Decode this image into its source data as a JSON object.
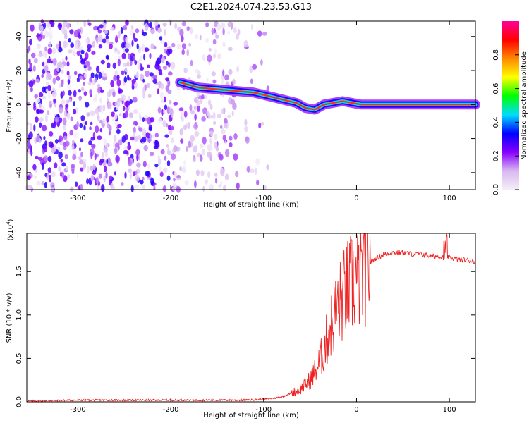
{
  "title": "C2E1.2024.074.23.53.G13",
  "chart_data": [
    {
      "type": "heatmap",
      "xlabel": "Height of straight line (km)",
      "ylabel": "Frequency (Hz)",
      "xlim": [
        -355,
        128
      ],
      "ylim": [
        -50,
        49
      ],
      "xticks": [
        "-300",
        "-200",
        "-100",
        "0",
        "100"
      ],
      "xtick_values": [
        -300,
        -200,
        -100,
        0,
        100
      ],
      "yticks": [
        "-40",
        "-20",
        "0",
        "20",
        "40"
      ],
      "ytick_values": [
        -40,
        -20,
        0,
        20,
        40
      ],
      "colorbar": {
        "label": "Normalized spectral amplitude",
        "range": [
          0,
          1
        ],
        "ticks": [
          "0.0",
          "0.2",
          "0.4",
          "0.6",
          "0.8"
        ],
        "tick_values": [
          0,
          0.2,
          0.4,
          0.6,
          0.8
        ],
        "colors": [
          "#f4eef9",
          "#d8b8f0",
          "#8800ff",
          "#0000ff",
          "#00ddff",
          "#00ff00",
          "#ffff00",
          "#ff8800",
          "#ff0000",
          "#ff0099"
        ]
      },
      "ridge": {
        "x": [
          -190,
          -170,
          -150,
          -130,
          -110,
          -95,
          -80,
          -65,
          -55,
          -45,
          -35,
          -25,
          -15,
          -5,
          5,
          128
        ],
        "y": [
          13,
          10,
          9,
          8,
          7,
          5,
          3,
          1,
          -2,
          -3,
          0,
          1,
          2,
          1,
          0,
          0
        ]
      }
    },
    {
      "type": "line",
      "xlabel": "Height of straight line (km)",
      "ylabel": "SNR (10 * v/v)",
      "yscale_label": "(x10",
      "yscale_exp": "4",
      "yscale_close": ")",
      "xlim": [
        -355,
        128
      ],
      "ylim": [
        0,
        1.94
      ],
      "xticks": [
        "-300",
        "-200",
        "-100",
        "0",
        "100"
      ],
      "xtick_values": [
        -300,
        -200,
        -100,
        0,
        100
      ],
      "yticks": [
        "0.0",
        "0.5",
        "1.0",
        "1.5"
      ],
      "ytick_values": [
        0,
        0.5,
        1.0,
        1.5
      ],
      "series": [
        {
          "color": "#ee2222",
          "x": [
            -355,
            -300,
            -250,
            -200,
            -150,
            -120,
            -100,
            -90,
            -80,
            -70,
            -60,
            -50,
            -45,
            -40,
            -35,
            -30,
            -25,
            -20,
            -15,
            -10,
            -5,
            0,
            5,
            10,
            20,
            30,
            40,
            50,
            60,
            70,
            80,
            90,
            95,
            100,
            110,
            128
          ],
          "y": [
            0.01,
            0.02,
            0.02,
            0.02,
            0.02,
            0.02,
            0.03,
            0.04,
            0.06,
            0.1,
            0.15,
            0.25,
            0.35,
            0.45,
            0.6,
            0.8,
            0.95,
            1.1,
            1.2,
            1.3,
            1.35,
            1.4,
            1.45,
            1.55,
            1.65,
            1.7,
            1.72,
            1.72,
            1.7,
            1.7,
            1.68,
            1.67,
            1.7,
            1.66,
            1.64,
            1.62
          ]
        }
      ]
    }
  ]
}
